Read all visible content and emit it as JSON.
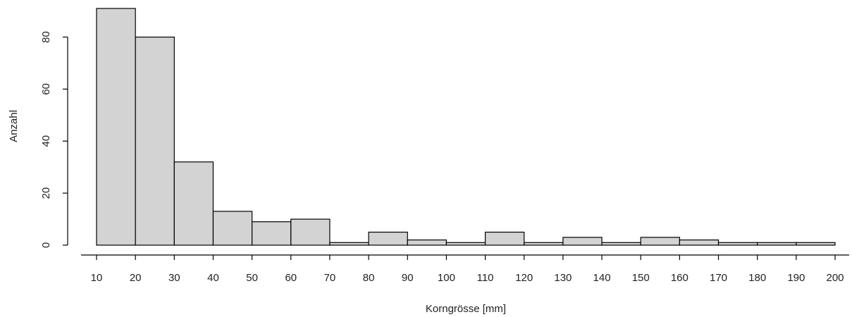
{
  "chart_data": {
    "type": "bar",
    "xlabel": "Korngrösse [mm]",
    "ylabel": "Anzahl",
    "bins": [
      {
        "from": 10,
        "to": 20,
        "count": 91
      },
      {
        "from": 20,
        "to": 30,
        "count": 80
      },
      {
        "from": 30,
        "to": 40,
        "count": 32
      },
      {
        "from": 40,
        "to": 50,
        "count": 13
      },
      {
        "from": 50,
        "to": 60,
        "count": 9
      },
      {
        "from": 60,
        "to": 70,
        "count": 10
      },
      {
        "from": 70,
        "to": 80,
        "count": 1
      },
      {
        "from": 80,
        "to": 90,
        "count": 5
      },
      {
        "from": 90,
        "to": 100,
        "count": 2
      },
      {
        "from": 100,
        "to": 110,
        "count": 1
      },
      {
        "from": 110,
        "to": 120,
        "count": 5
      },
      {
        "from": 120,
        "to": 130,
        "count": 1
      },
      {
        "from": 130,
        "to": 140,
        "count": 3
      },
      {
        "from": 140,
        "to": 150,
        "count": 1
      },
      {
        "from": 150,
        "to": 160,
        "count": 3
      },
      {
        "from": 160,
        "to": 170,
        "count": 2
      },
      {
        "from": 170,
        "to": 180,
        "count": 1
      },
      {
        "from": 180,
        "to": 190,
        "count": 1
      },
      {
        "from": 190,
        "to": 200,
        "count": 1
      }
    ],
    "xlim": [
      10,
      200
    ],
    "ylim": [
      0,
      91
    ],
    "xticks": [
      10,
      20,
      30,
      40,
      50,
      60,
      70,
      80,
      90,
      100,
      110,
      120,
      130,
      140,
      150,
      160,
      170,
      180,
      190,
      200
    ],
    "yticks": [
      0,
      20,
      40,
      60,
      80
    ],
    "bar_fill": "#d3d3d3",
    "bar_stroke": "#000000",
    "grid": false
  }
}
